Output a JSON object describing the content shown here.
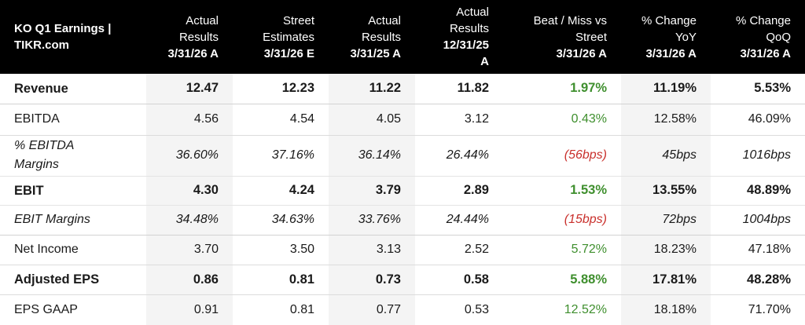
{
  "header": {
    "title_line1": "KO Q1 Earnings |",
    "title_line2": "TIKR.com",
    "columns": [
      {
        "label1": "Actual",
        "label2": "Results",
        "date": "3/31/26 A"
      },
      {
        "label1": "Street",
        "label2": "Estimates",
        "date": "3/31/26 E"
      },
      {
        "label1": "Actual",
        "label2": "Results",
        "date": "3/31/25 A"
      },
      {
        "label1": "Actual",
        "label2": "Results",
        "date": "12/31/25",
        "date2": "A"
      },
      {
        "label1": "Beat / Miss vs",
        "label2": "Street",
        "date": "3/31/26 A"
      },
      {
        "label1": "% Change",
        "label2": "YoY",
        "date": "3/31/26 A"
      },
      {
        "label1": "% Change",
        "label2": "QoQ",
        "date": "3/31/26 A"
      }
    ]
  },
  "rows": [
    {
      "label": "Revenue",
      "values": [
        "12.47",
        "12.23",
        "11.22",
        "11.82",
        "1.97%",
        "11.19%",
        "5.53%"
      ]
    },
    {
      "label": "EBITDA",
      "values": [
        "4.56",
        "4.54",
        "4.05",
        "3.12",
        "0.43%",
        "12.58%",
        "46.09%"
      ]
    },
    {
      "label_line1": "% EBITDA",
      "label_line2": "Margins",
      "values": [
        "36.60%",
        "37.16%",
        "36.14%",
        "26.44%",
        "(56bps)",
        "45bps",
        "1016bps"
      ]
    },
    {
      "label": "EBIT",
      "values": [
        "4.30",
        "4.24",
        "3.79",
        "2.89",
        "1.53%",
        "13.55%",
        "48.89%"
      ]
    },
    {
      "label": "EBIT Margins",
      "values": [
        "34.48%",
        "34.63%",
        "33.76%",
        "24.44%",
        "(15bps)",
        "72bps",
        "1004bps"
      ]
    },
    {
      "label": "Net Income",
      "values": [
        "3.70",
        "3.50",
        "3.13",
        "2.52",
        "5.72%",
        "18.23%",
        "47.18%"
      ]
    },
    {
      "label": "Adjusted EPS",
      "values": [
        "0.86",
        "0.81",
        "0.73",
        "0.58",
        "5.88%",
        "17.81%",
        "48.28%"
      ]
    },
    {
      "label": "EPS GAAP",
      "values": [
        "0.91",
        "0.81",
        "0.77",
        "0.53",
        "12.52%",
        "18.18%",
        "71.70%"
      ]
    }
  ],
  "colors": {
    "positive": "#3f8f2e",
    "negative": "#c9302c",
    "header_bg": "#000000",
    "shaded_col": "#f4f4f4"
  }
}
